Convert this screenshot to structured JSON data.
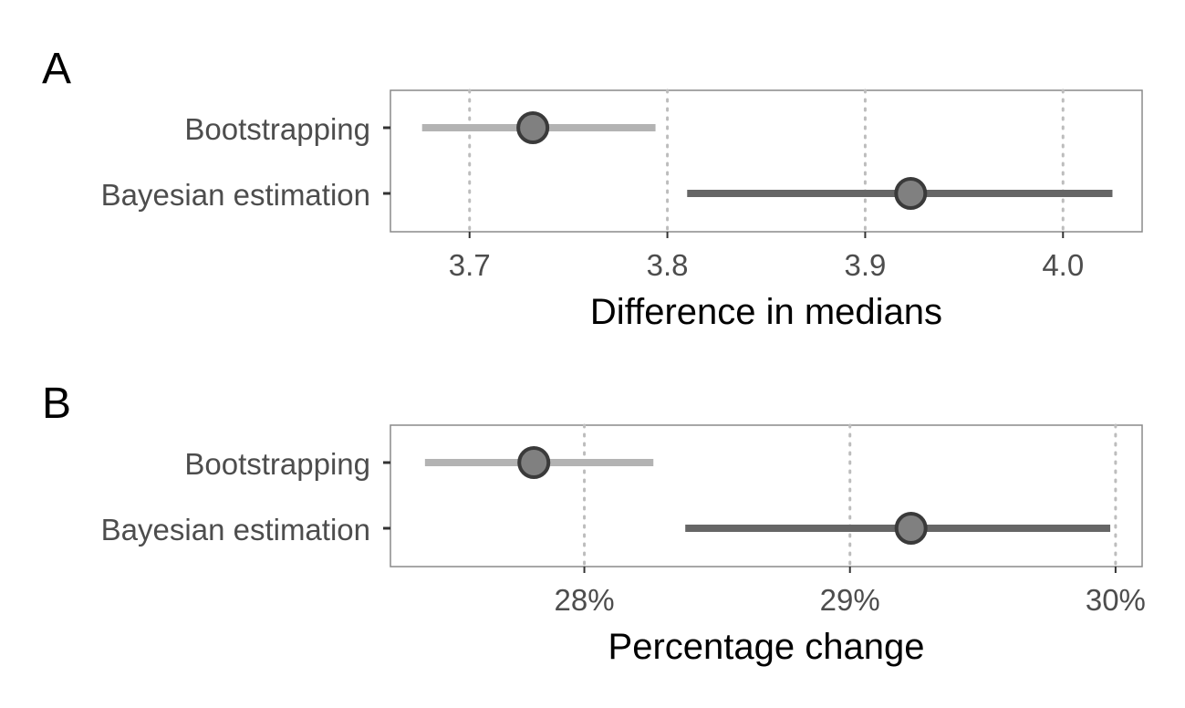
{
  "chart_data": [
    {
      "type": "interval",
      "panel_label": "A",
      "xlabel": "Difference in medians",
      "xlim": [
        3.66,
        4.04
      ],
      "xticks": [
        3.7,
        3.8,
        3.9,
        4.0
      ],
      "xtick_labels": [
        "3.7",
        "3.8",
        "3.9",
        "4.0"
      ],
      "grid": "vertical dotted",
      "categories": [
        "Bootstrapping",
        "Bayesian estimation"
      ],
      "series": [
        {
          "name": "Bootstrapping",
          "estimate": 3.732,
          "lower": 3.676,
          "upper": 3.794,
          "color": "#b3b3b3"
        },
        {
          "name": "Bayesian estimation",
          "estimate": 3.923,
          "lower": 3.81,
          "upper": 4.025,
          "color": "#666666"
        }
      ]
    },
    {
      "type": "interval",
      "panel_label": "B",
      "xlabel": "Percentage change",
      "xlim": [
        27.27,
        30.1
      ],
      "xticks": [
        28,
        29,
        30
      ],
      "xtick_labels": [
        "28%",
        "29%",
        "30%"
      ],
      "grid": "vertical dotted",
      "categories": [
        "Bootstrapping",
        "Bayesian estimation"
      ],
      "series": [
        {
          "name": "Bootstrapping",
          "estimate": 27.81,
          "lower": 27.4,
          "upper": 28.26,
          "color": "#b3b3b3"
        },
        {
          "name": "Bayesian estimation",
          "estimate": 29.23,
          "lower": 28.38,
          "upper": 29.98,
          "color": "#666666"
        }
      ]
    }
  ],
  "style": {
    "point_fill": "#808080",
    "point_stroke": "#3a3a3a",
    "grid_color": "#bdbdbd",
    "panel_border": "#8a8a8a",
    "tick_color": "#333333"
  }
}
